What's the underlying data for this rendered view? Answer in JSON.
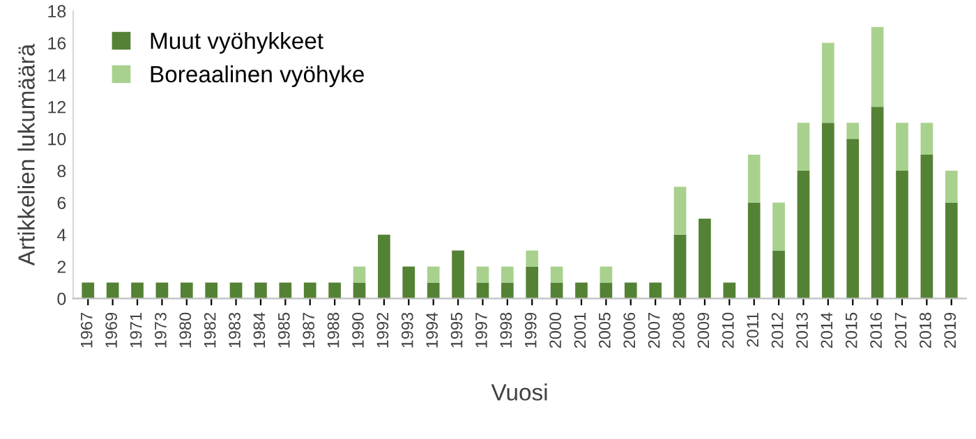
{
  "chart_data": {
    "type": "bar",
    "stacked": true,
    "xlabel": "Vuosi",
    "ylabel": "Artikkelien lukumäärä",
    "categories": [
      "1967",
      "1969",
      "1971",
      "1973",
      "1980",
      "1982",
      "1983",
      "1984",
      "1985",
      "1987",
      "1988",
      "1990",
      "1992",
      "1993",
      "1994",
      "1995",
      "1997",
      "1998",
      "1999",
      "2000",
      "2001",
      "2005",
      "2006",
      "2007",
      "2008",
      "2009",
      "2010",
      "2011",
      "2012",
      "2013",
      "2014",
      "2015",
      "2016",
      "2017",
      "2018",
      "2019"
    ],
    "series": [
      {
        "name": "Muut vyöhykkeet",
        "color": "#548235",
        "values": [
          1,
          1,
          1,
          1,
          1,
          1,
          1,
          1,
          1,
          1,
          1,
          1,
          4,
          2,
          1,
          3,
          1,
          1,
          2,
          1,
          1,
          1,
          1,
          1,
          4,
          5,
          1,
          6,
          3,
          8,
          11,
          10,
          12,
          8,
          9,
          6
        ]
      },
      {
        "name": "Boreaalinen vyöhyke",
        "color": "#a9d18e",
        "values": [
          0,
          0,
          0,
          0,
          0,
          0,
          0,
          0,
          0,
          0,
          0,
          1,
          0,
          0,
          1,
          0,
          1,
          1,
          1,
          1,
          0,
          1,
          0,
          0,
          3,
          0,
          0,
          3,
          3,
          3,
          5,
          1,
          5,
          3,
          2,
          2
        ]
      }
    ],
    "ylim": [
      0,
      18
    ],
    "yticks": [
      0,
      2,
      4,
      6,
      8,
      10,
      12,
      14,
      16,
      18
    ],
    "grid": false,
    "legend": "top left"
  }
}
